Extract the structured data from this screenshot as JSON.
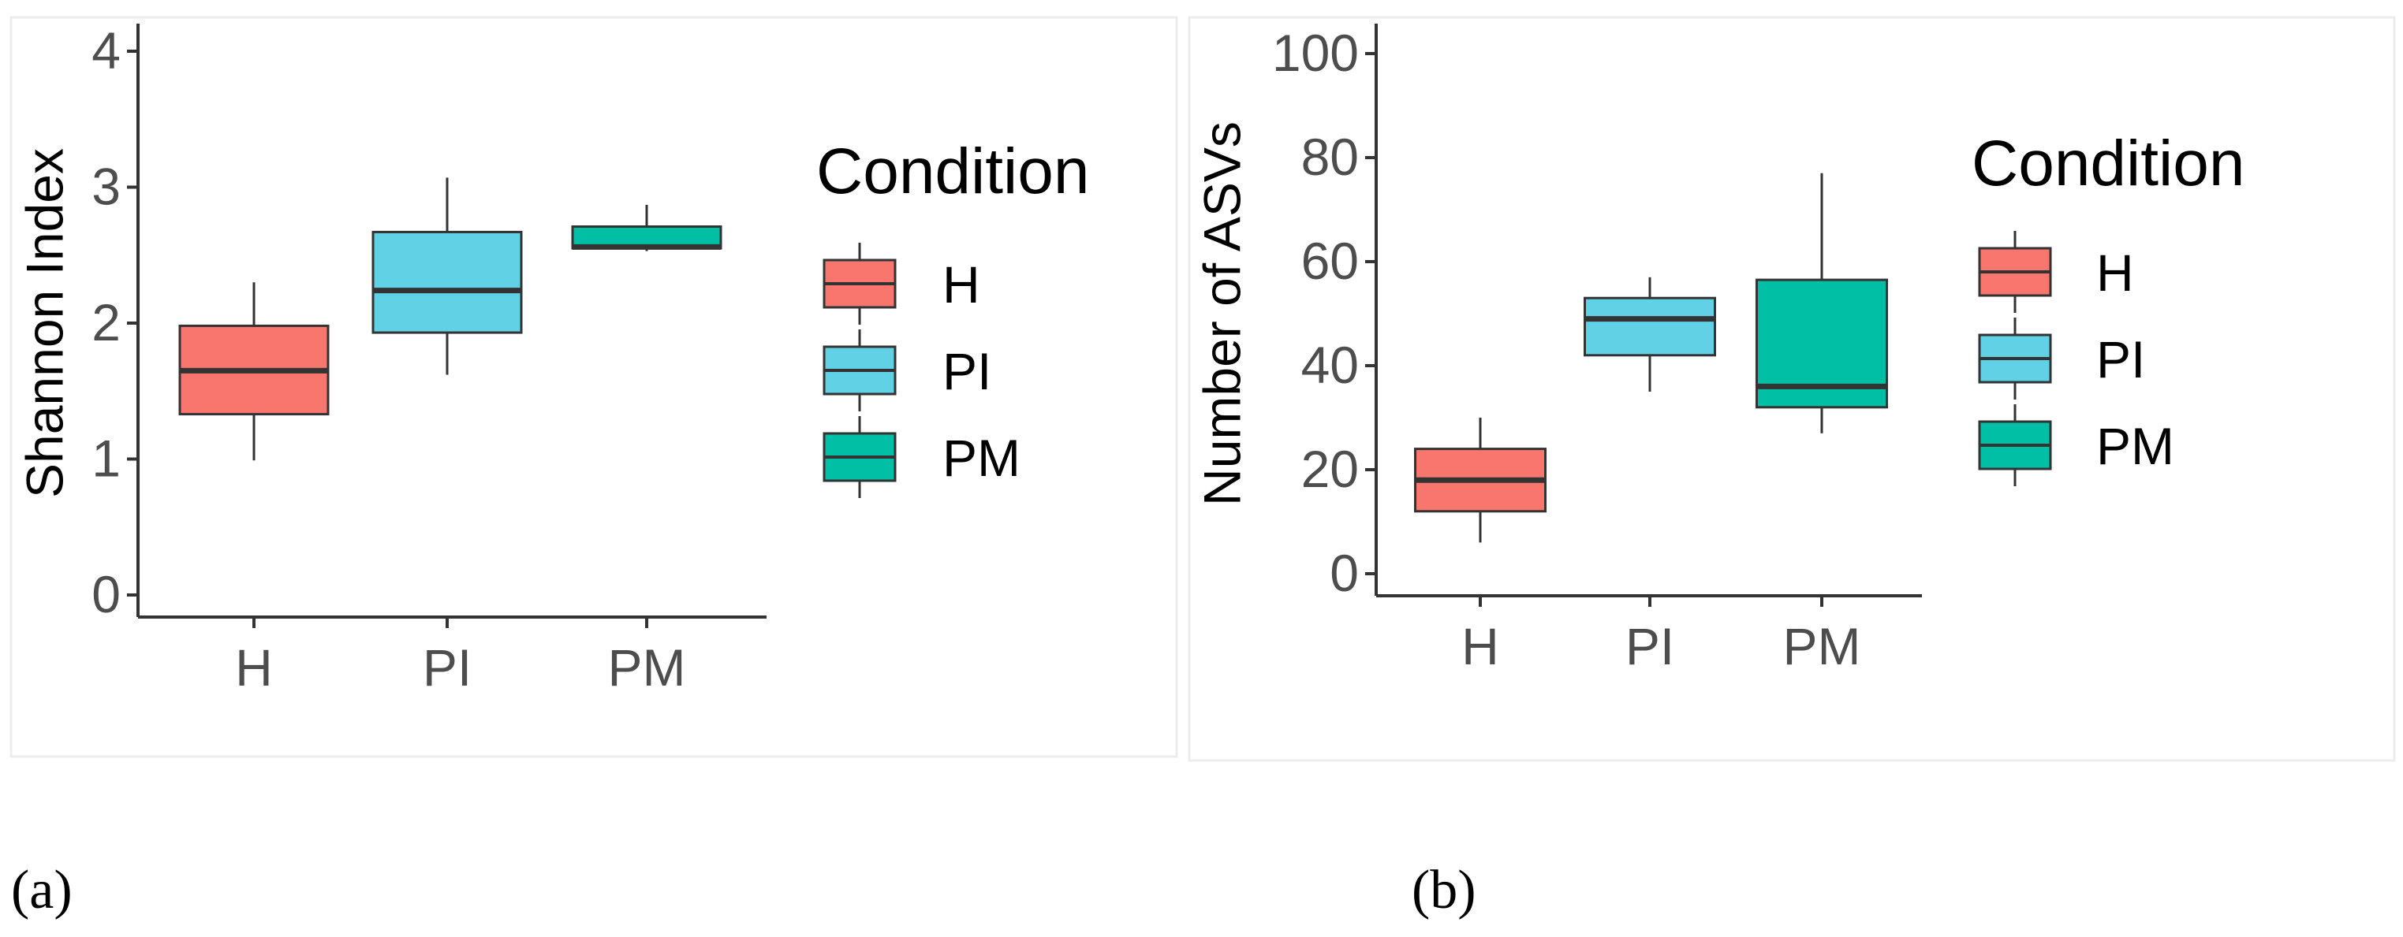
{
  "colors": {
    "H": "#F8766D",
    "PI": "#61D1E6",
    "PM": "#00BFA4",
    "median": "#333333",
    "axis": "#333333"
  },
  "chart_data": [
    {
      "type": "box",
      "panel_label": "(a)",
      "ylabel": "Shannon Index",
      "ylim": [
        0,
        4
      ],
      "yticks": [
        "0",
        "1",
        "2",
        "3",
        "4"
      ],
      "categories": [
        "H",
        "PI",
        "PM"
      ],
      "legend_title": "Condition",
      "legend_entries": [
        "H",
        "PI",
        "PM"
      ],
      "boxes": [
        {
          "group": "H",
          "min": 0.99,
          "q1": 1.33,
          "median": 1.65,
          "q3": 1.98,
          "max": 2.3
        },
        {
          "group": "PI",
          "min": 1.62,
          "q1": 1.93,
          "median": 2.24,
          "q3": 2.67,
          "max": 3.07
        },
        {
          "group": "PM",
          "min": 2.53,
          "q1": 2.55,
          "median": 2.56,
          "q3": 2.71,
          "max": 2.87
        }
      ]
    },
    {
      "type": "box",
      "panel_label": "(b)",
      "ylabel": "Number of ASVs",
      "ylim": [
        0,
        100
      ],
      "yticks": [
        "0",
        "20",
        "40",
        "60",
        "80",
        "100"
      ],
      "categories": [
        "H",
        "PI",
        "PM"
      ],
      "legend_title": "Condition",
      "legend_entries": [
        "H",
        "PI",
        "PM"
      ],
      "boxes": [
        {
          "group": "H",
          "min": 6,
          "q1": 12,
          "median": 18,
          "q3": 24,
          "max": 30
        },
        {
          "group": "PI",
          "min": 35,
          "q1": 42,
          "median": 49,
          "q3": 53,
          "max": 57
        },
        {
          "group": "PM",
          "min": 27,
          "q1": 32,
          "median": 36,
          "q3": 56.5,
          "max": 77
        }
      ]
    }
  ]
}
